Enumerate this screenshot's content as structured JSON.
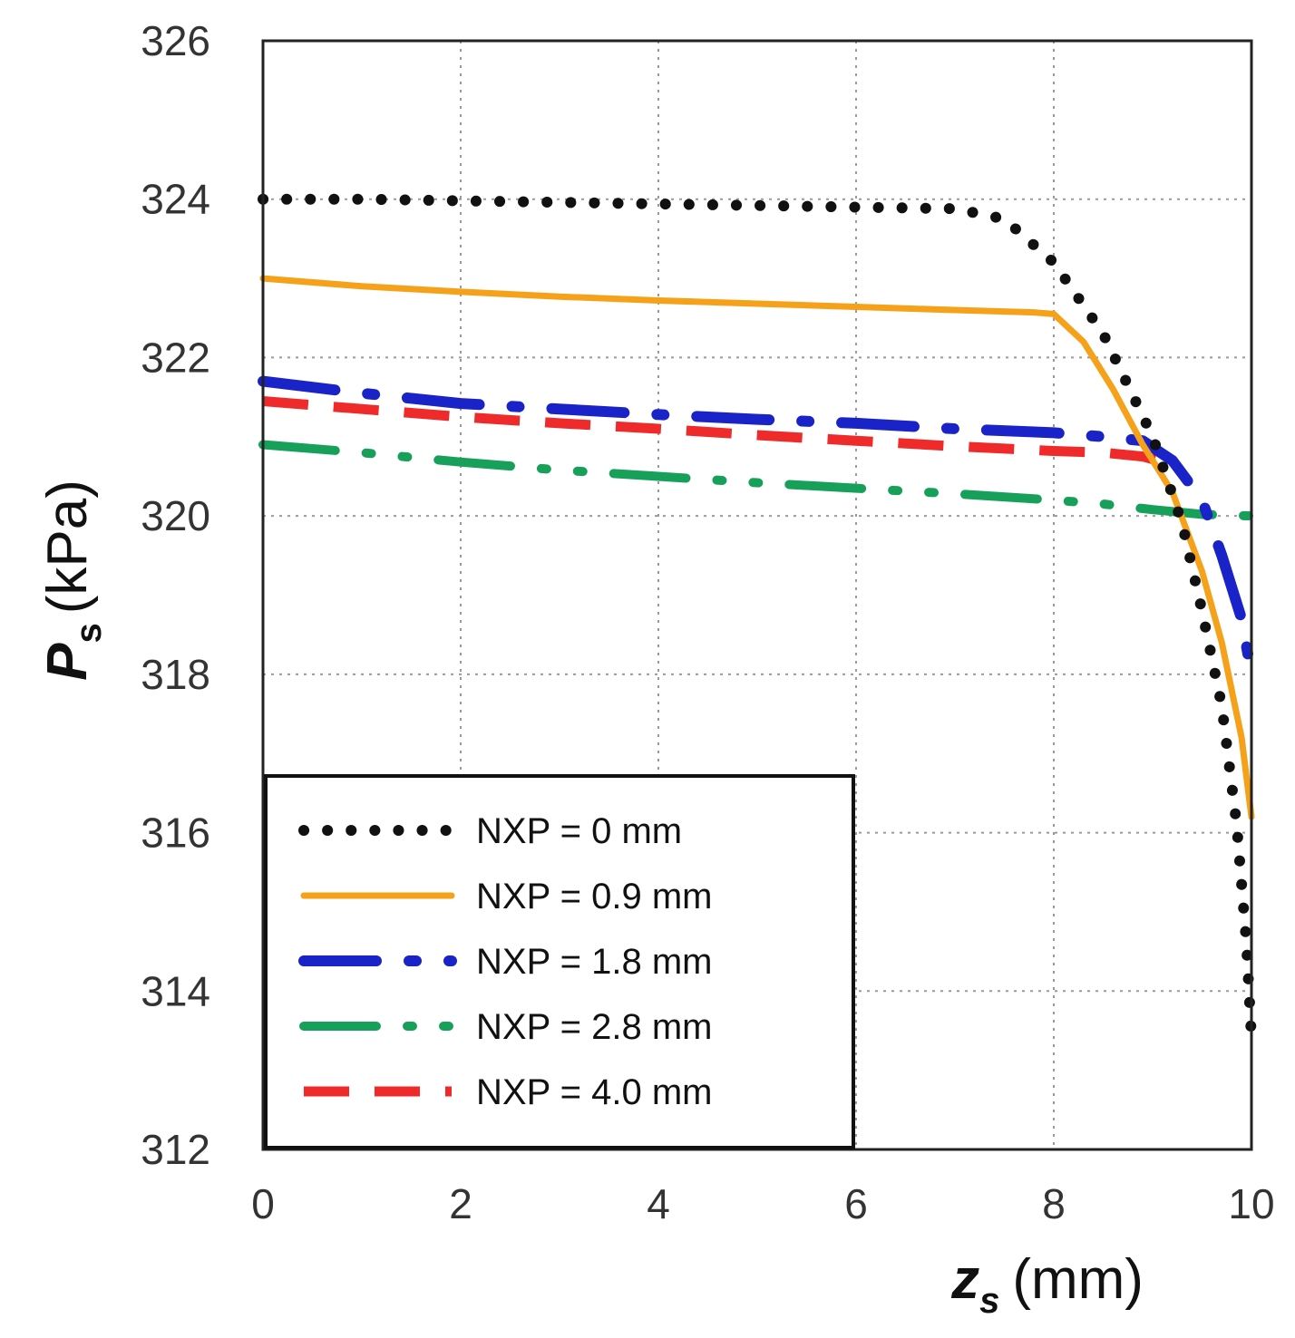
{
  "chart_data": {
    "type": "line",
    "title": "",
    "xlabel": {
      "symbol": "z",
      "subscript": "s",
      "unit": "(mm)"
    },
    "ylabel": {
      "symbol": "P",
      "subscript": "s",
      "unit": "(kPa)"
    },
    "xlim": [
      0,
      10
    ],
    "ylim": [
      312,
      326
    ],
    "xticks": [
      "0",
      "2",
      "4",
      "6",
      "8",
      "10"
    ],
    "yticks": [
      "312",
      "314",
      "316",
      "318",
      "320",
      "322",
      "324",
      "326"
    ],
    "grid": true,
    "legend_position": "bottom-left",
    "series": [
      {
        "name": "NXP = 0 mm",
        "color": "#111111",
        "style": "dotted",
        "x": [
          0,
          1,
          2,
          3,
          4,
          5,
          6,
          7,
          7.5,
          8.0,
          8.5,
          9.0,
          9.3,
          9.5,
          9.7,
          9.85,
          9.95,
          10.0
        ],
        "y": [
          324.0,
          324.0,
          323.98,
          323.96,
          323.94,
          323.92,
          323.9,
          323.88,
          323.75,
          323.2,
          322.3,
          321.0,
          319.9,
          318.8,
          317.6,
          316.1,
          314.6,
          313.4
        ]
      },
      {
        "name": "NXP = 0.9 mm",
        "color": "#f5a21a",
        "style": "solid",
        "x": [
          0,
          1,
          2,
          3,
          4,
          5,
          6,
          7,
          7.8,
          8.0,
          8.3,
          8.6,
          8.9,
          9.2,
          9.5,
          9.7,
          9.9,
          10.0
        ],
        "y": [
          323.0,
          322.9,
          322.83,
          322.77,
          322.72,
          322.68,
          322.64,
          322.6,
          322.57,
          322.55,
          322.2,
          321.6,
          320.9,
          320.3,
          319.3,
          318.4,
          317.2,
          316.2
        ]
      },
      {
        "name": "NXP = 1.8 mm",
        "color": "#1a23c8",
        "style": "dashdot",
        "x": [
          0,
          1,
          2,
          3,
          4,
          5,
          6,
          7,
          8,
          8.5,
          8.9,
          9.2,
          9.5,
          9.7,
          9.9,
          10.0
        ],
        "y": [
          321.7,
          321.55,
          321.42,
          321.35,
          321.28,
          321.22,
          321.17,
          321.1,
          321.05,
          321.0,
          320.95,
          320.7,
          320.2,
          319.5,
          318.7,
          318.0
        ]
      },
      {
        "name": "NXP = 2.8 mm",
        "color": "#17a05a",
        "style": "dashdotdot",
        "x": [
          0,
          1,
          2,
          3,
          4,
          5,
          6,
          7,
          8,
          8.5,
          9,
          9.5,
          10.0
        ],
        "y": [
          320.9,
          320.8,
          320.68,
          320.58,
          320.5,
          320.42,
          320.35,
          320.28,
          320.2,
          320.15,
          320.08,
          320.02,
          320.0
        ]
      },
      {
        "name": "NXP = 4.0 mm",
        "color": "#ee2a2a",
        "style": "dashed",
        "x": [
          0,
          1,
          2,
          3,
          4,
          5,
          6,
          7,
          8,
          8.5,
          8.9,
          9.2
        ],
        "y": [
          321.45,
          321.35,
          321.25,
          321.17,
          321.1,
          321.02,
          320.95,
          320.88,
          320.82,
          320.8,
          320.75,
          320.65
        ]
      }
    ]
  }
}
